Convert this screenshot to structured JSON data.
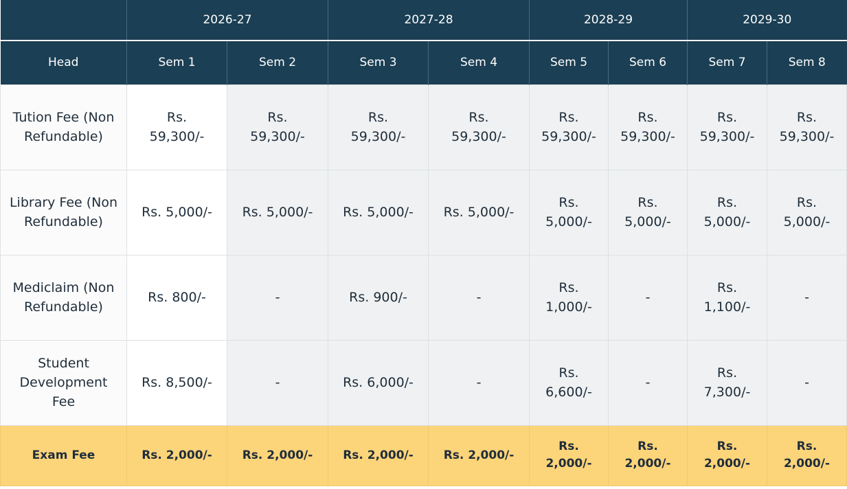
{
  "header": {
    "years": [
      "2026-27",
      "2027-28",
      "2028-29",
      "2029-30"
    ],
    "head_label": "Head",
    "semesters": [
      "Sem 1",
      "Sem 2",
      "Sem 3",
      "Sem 4",
      "Sem 5",
      "Sem 6",
      "Sem 7",
      "Sem 8"
    ]
  },
  "rows": [
    {
      "head": "Tution Fee (Non Refundable)",
      "values": [
        "Rs. 59,300/-",
        "Rs. 59,300/-",
        "Rs. 59,300/-",
        "Rs. 59,300/-",
        "Rs. 59,300/-",
        "Rs. 59,300/-",
        "Rs. 59,300/-",
        "Rs. 59,300/-"
      ]
    },
    {
      "head": "Library Fee (Non Refundable)",
      "values": [
        "Rs. 5,000/-",
        "Rs. 5,000/-",
        "Rs. 5,000/-",
        "Rs. 5,000/-",
        "Rs. 5,000/-",
        "Rs. 5,000/-",
        "Rs. 5,000/-",
        "Rs. 5,000/-"
      ]
    },
    {
      "head": "Mediclaim (Non Refundable)",
      "values": [
        "Rs. 800/-",
        "-",
        "Rs. 900/-",
        "-",
        "Rs. 1,000/-",
        "-",
        "Rs. 1,100/-",
        "-"
      ]
    },
    {
      "head": "Student Development Fee",
      "values": [
        "Rs. 8,500/-",
        "-",
        "Rs. 6,000/-",
        "-",
        "Rs. 6,600/-",
        "-",
        "Rs. 7,300/-",
        "-"
      ]
    },
    {
      "head": "Exam Fee",
      "values": [
        "Rs. 2,000/-",
        "Rs. 2,000/-",
        "Rs. 2,000/-",
        "Rs. 2,000/-",
        "Rs. 2,000/-",
        "Rs. 2,000/-",
        "Rs. 2,000/-",
        "Rs. 2,000/-"
      ]
    }
  ],
  "colors": {
    "header_bg": "#1b3f54",
    "header_text": "#ffffff",
    "body_bg": "#eff1f2",
    "highlight_row_bg": "#fcd47a"
  }
}
